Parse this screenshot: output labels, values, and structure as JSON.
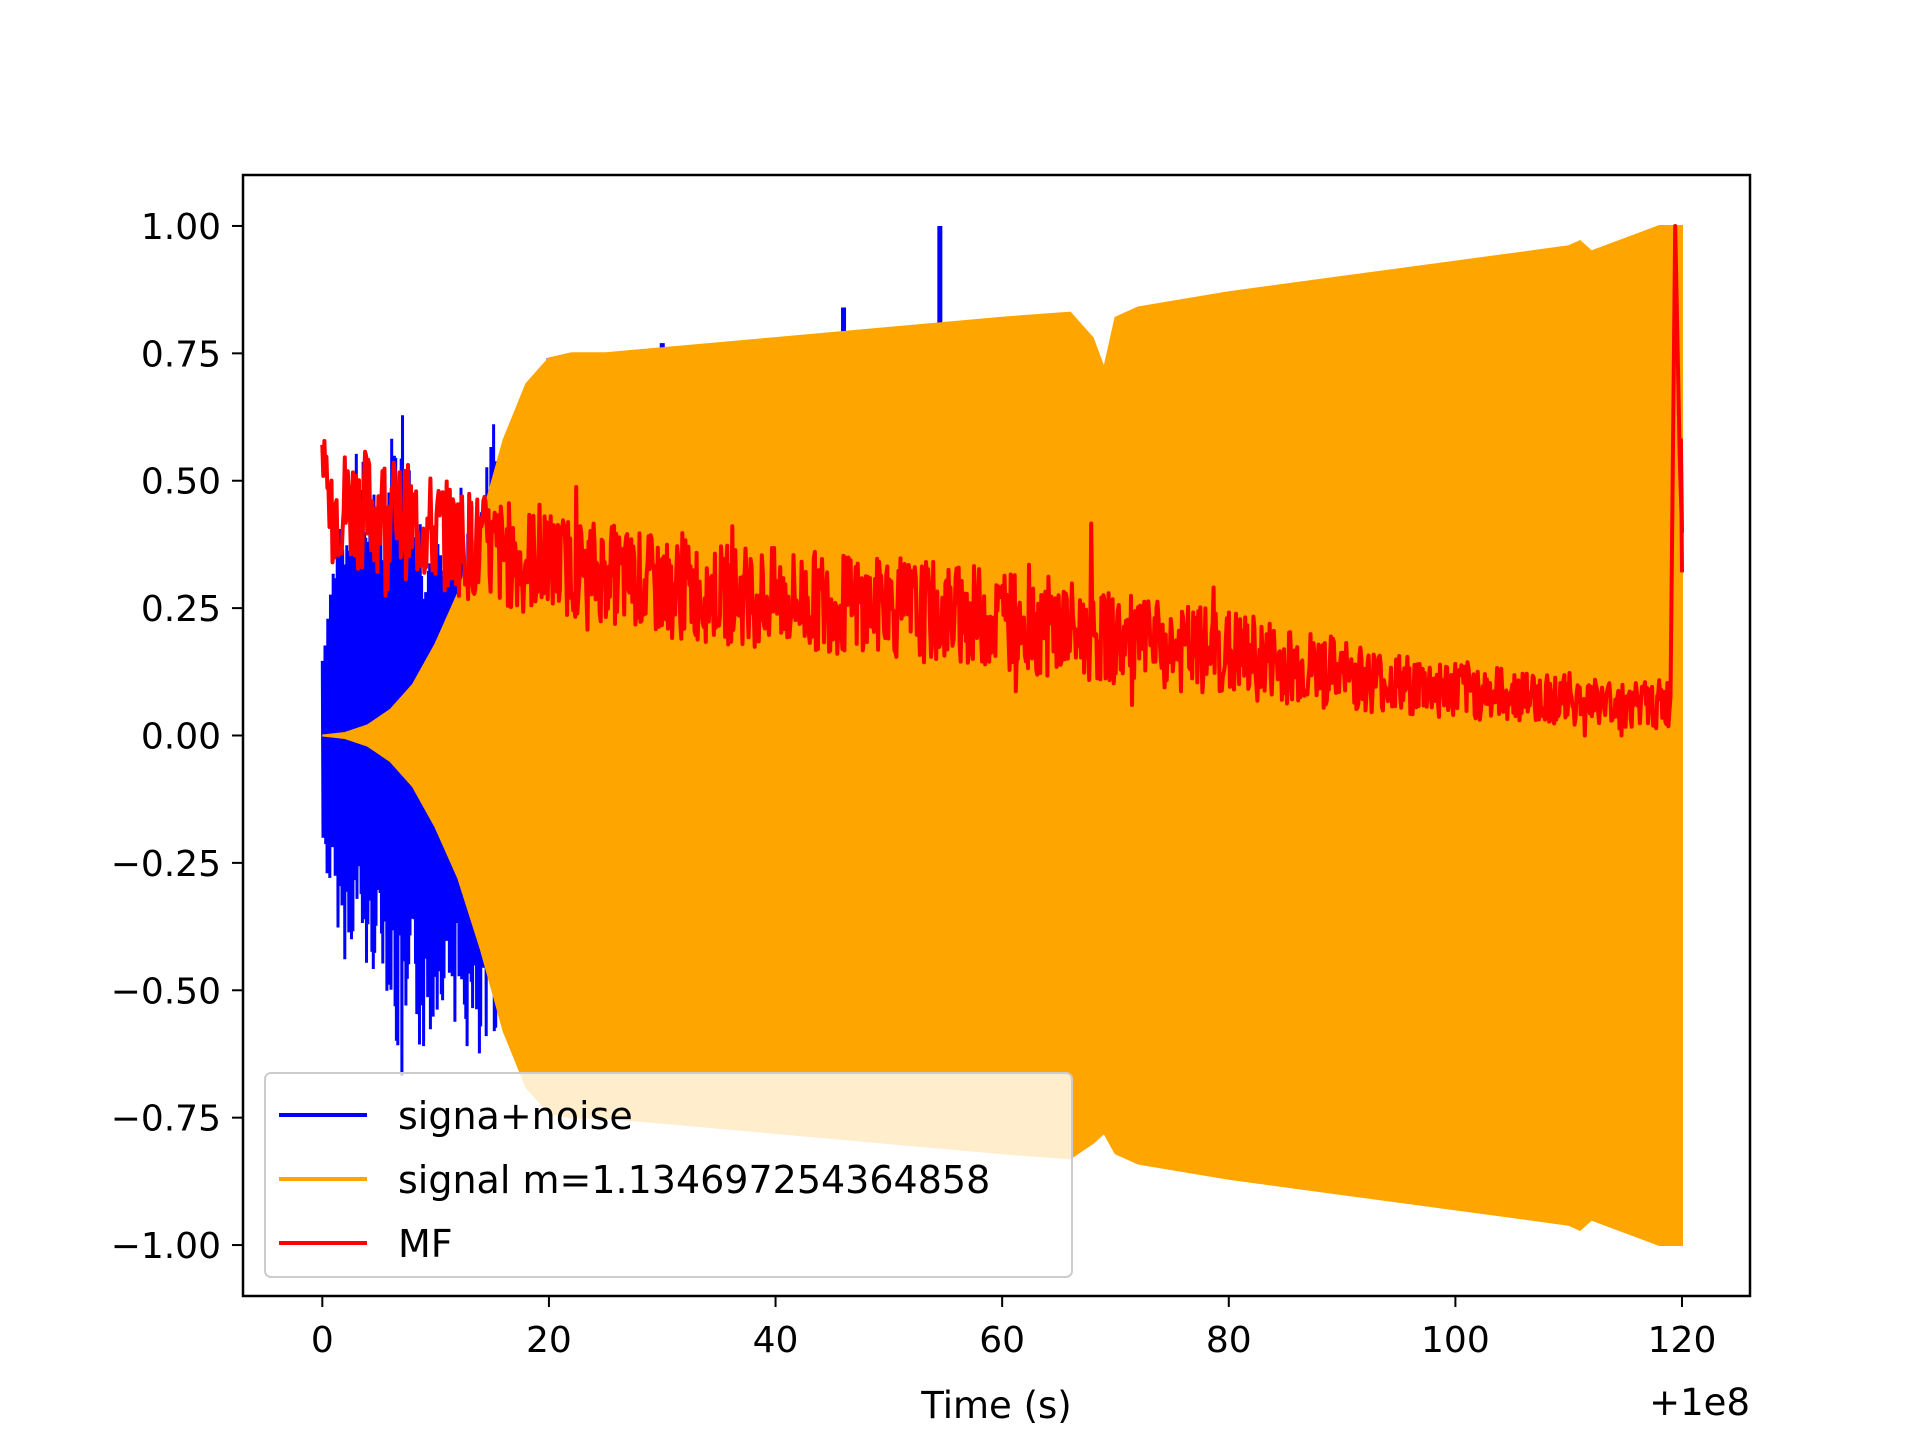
{
  "chart_data": {
    "type": "line",
    "xlabel": "Time (s)",
    "ylabel": "",
    "x_offset_label": "+1e8",
    "xlim": [
      -7,
      126
    ],
    "ylim": [
      -1.1,
      1.1
    ],
    "x_ticks": [
      0,
      20,
      40,
      60,
      80,
      100,
      120
    ],
    "y_ticks": [
      1.0,
      0.75,
      0.5,
      0.25,
      0.0,
      -0.25,
      -0.5,
      -0.75,
      -1.0
    ],
    "y_tick_labels": [
      "1.00",
      "0.75",
      "0.50",
      "0.25",
      "0.00",
      "−0.25",
      "−0.50",
      "−0.75",
      "−1.00"
    ],
    "grid": false,
    "legend_position": "lower-left",
    "series": [
      {
        "name": "signa+noise",
        "color": "#0000ff",
        "x": [
          0,
          1,
          2,
          3,
          4,
          5,
          6,
          7,
          8,
          9,
          10,
          11,
          12,
          13,
          14,
          15,
          16,
          17,
          18,
          19,
          20,
          30,
          46,
          54.5
        ],
        "upper": [
          0.19,
          0.38,
          0.44,
          0.62,
          0.5,
          0.48,
          0.6,
          0.69,
          0.52,
          0.45,
          0.4,
          0.38,
          0.5,
          0.48,
          0.45,
          0.67,
          0.45,
          0.55,
          0.65,
          0.7,
          0.74,
          0.77,
          0.84,
          1.0
        ],
        "lower": [
          -0.25,
          -0.35,
          -0.45,
          -0.38,
          -0.5,
          -0.42,
          -0.55,
          -0.73,
          -0.6,
          -0.65,
          -0.55,
          -0.5,
          -0.6,
          -0.65,
          -0.72,
          -0.6,
          -0.55,
          -0.6,
          -0.65,
          -0.68,
          -0.7,
          -0.73,
          -0.78,
          -0.8
        ]
      },
      {
        "name": "signal m=1.134697254364858",
        "color": "#ffa500",
        "x": [
          0,
          2,
          4,
          6,
          8,
          10,
          12,
          14,
          16,
          18,
          20,
          22,
          25,
          30,
          40,
          50,
          60,
          66,
          68,
          69,
          70,
          72,
          80,
          90,
          100,
          110,
          111,
          112,
          118,
          120
        ],
        "upper": [
          0.0,
          0.005,
          0.02,
          0.05,
          0.1,
          0.18,
          0.28,
          0.42,
          0.58,
          0.69,
          0.74,
          0.75,
          0.75,
          0.76,
          0.78,
          0.8,
          0.82,
          0.83,
          0.78,
          0.72,
          0.82,
          0.84,
          0.87,
          0.9,
          0.93,
          0.96,
          0.97,
          0.95,
          1.0,
          1.0
        ],
        "lower": [
          0.0,
          -0.005,
          -0.02,
          -0.05,
          -0.1,
          -0.18,
          -0.28,
          -0.42,
          -0.58,
          -0.69,
          -0.74,
          -0.75,
          -0.75,
          -0.76,
          -0.78,
          -0.8,
          -0.82,
          -0.83,
          -0.8,
          -0.78,
          -0.82,
          -0.84,
          -0.87,
          -0.9,
          -0.93,
          -0.96,
          -0.97,
          -0.95,
          -1.0,
          -1.0
        ]
      },
      {
        "name": "MF",
        "color": "#ff0000",
        "x": [
          0,
          5,
          10,
          15,
          20,
          25,
          30,
          35,
          40,
          45,
          50,
          55,
          60,
          65,
          70,
          75,
          80,
          85,
          90,
          95,
          100,
          105,
          110,
          115,
          118,
          119,
          119.4,
          119.8,
          120
        ],
        "center": [
          0.46,
          0.44,
          0.4,
          0.36,
          0.34,
          0.32,
          0.29,
          0.28,
          0.27,
          0.26,
          0.25,
          0.24,
          0.23,
          0.21,
          0.19,
          0.17,
          0.16,
          0.14,
          0.12,
          0.1,
          0.09,
          0.08,
          0.07,
          0.06,
          0.06,
          0.06,
          1.0,
          0.55,
          0.4
        ],
        "spread": [
          0.12,
          0.12,
          0.11,
          0.11,
          0.1,
          0.1,
          0.1,
          0.1,
          0.1,
          0.1,
          0.1,
          0.1,
          0.1,
          0.1,
          0.09,
          0.09,
          0.09,
          0.08,
          0.07,
          0.06,
          0.06,
          0.05,
          0.05,
          0.05,
          0.05,
          0.05,
          0.0,
          0.05,
          0.05
        ]
      }
    ]
  }
}
